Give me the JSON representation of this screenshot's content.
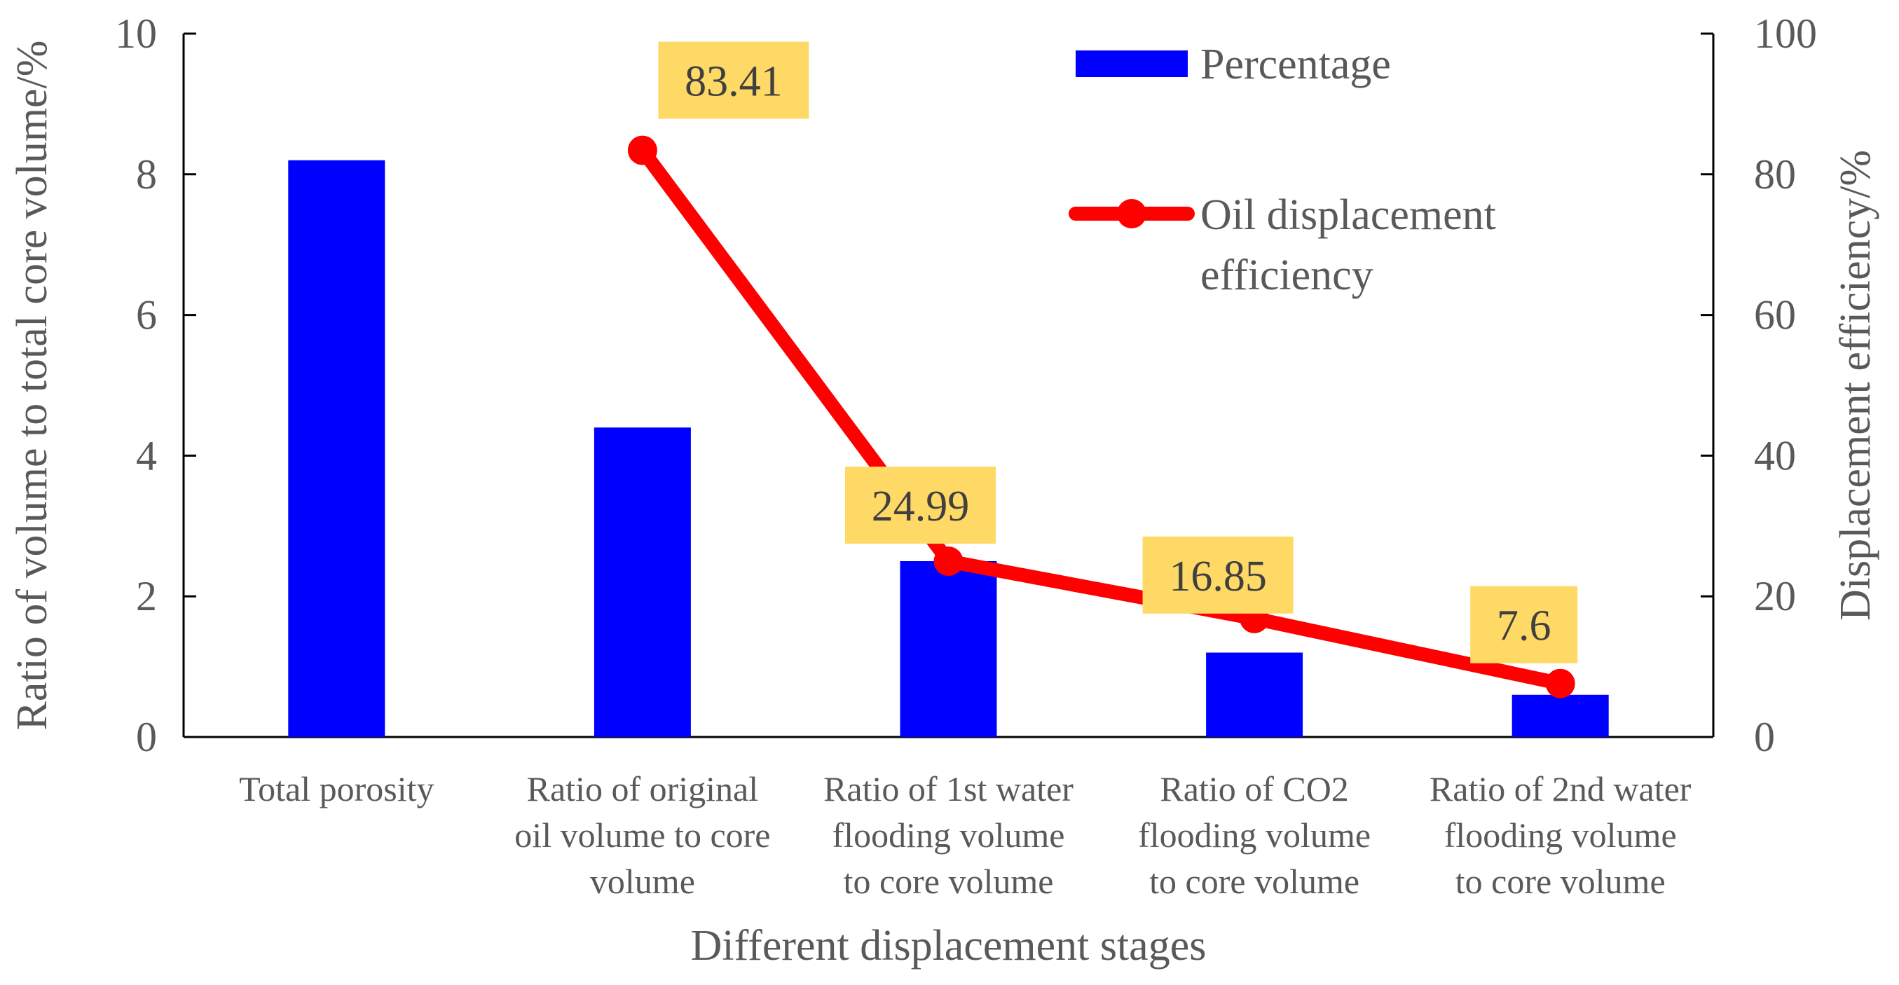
{
  "chart_data": {
    "type": "bar",
    "title": "",
    "xlabel": "Different displacement stages",
    "ylabel": "Ratio of volume to total core volume/%",
    "y2label": "Displacement efficiency/%",
    "ylim": [
      0,
      10
    ],
    "y2lim": [
      0,
      100
    ],
    "yticks": [
      "0",
      "2",
      "4",
      "6",
      "8",
      "10"
    ],
    "y2ticks": [
      "0",
      "20",
      "40",
      "60",
      "80",
      "100"
    ],
    "categories": [
      [
        "Total porosity"
      ],
      [
        "Ratio of original",
        "oil volume to core",
        "volume"
      ],
      [
        "Ratio of 1st water",
        "flooding volume",
        "to core volume"
      ],
      [
        "Ratio of CO2",
        "flooding volume",
        "to core volume"
      ],
      [
        "Ratio of 2nd water",
        "flooding volume",
        "to core volume"
      ]
    ],
    "series": [
      {
        "name": "Percentage",
        "type": "bar",
        "axis": "left",
        "color": "#0000ff",
        "values": [
          8.2,
          4.4,
          2.5,
          1.2,
          0.6
        ]
      },
      {
        "name": "Oil displacement efficiency",
        "name_lines": [
          "Oil displacement",
          "efficiency"
        ],
        "type": "line",
        "axis": "right",
        "color": "#ff0000",
        "values": [
          null,
          83.41,
          24.99,
          16.85,
          7.6
        ],
        "labels": [
          "",
          "83.41",
          "24.99",
          "16.85",
          "7.6"
        ]
      }
    ],
    "label_box_color": "#ffd966",
    "legend": "top-right"
  }
}
